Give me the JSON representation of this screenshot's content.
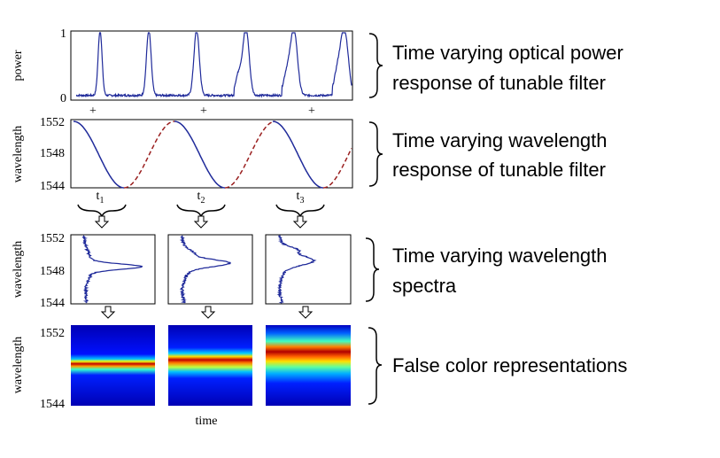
{
  "panels": [
    {
      "y_label": "power",
      "ticks": [
        "1",
        "0"
      ],
      "markers": [
        "+",
        "+",
        "+"
      ],
      "description": [
        "Time varying optical power",
        "response of tunable filter"
      ]
    },
    {
      "y_label": "wavelength",
      "ticks": [
        "1552",
        "1548",
        "1544"
      ],
      "time_labels": [
        {
          "base": "t",
          "sub": "1"
        },
        {
          "base": "t",
          "sub": "2"
        },
        {
          "base": "t",
          "sub": "3"
        }
      ],
      "description": [
        "Time varying wavelength",
        "response of tunable filter"
      ]
    },
    {
      "y_label": "wavelength",
      "ticks": [
        "1552",
        "1548",
        "1544"
      ],
      "description": [
        "Time varying wavelength",
        "spectra"
      ]
    },
    {
      "y_label": "wavelength",
      "ticks": [
        "1552",
        "1544"
      ],
      "description": [
        "False color representations"
      ]
    }
  ],
  "x_label": "time"
}
